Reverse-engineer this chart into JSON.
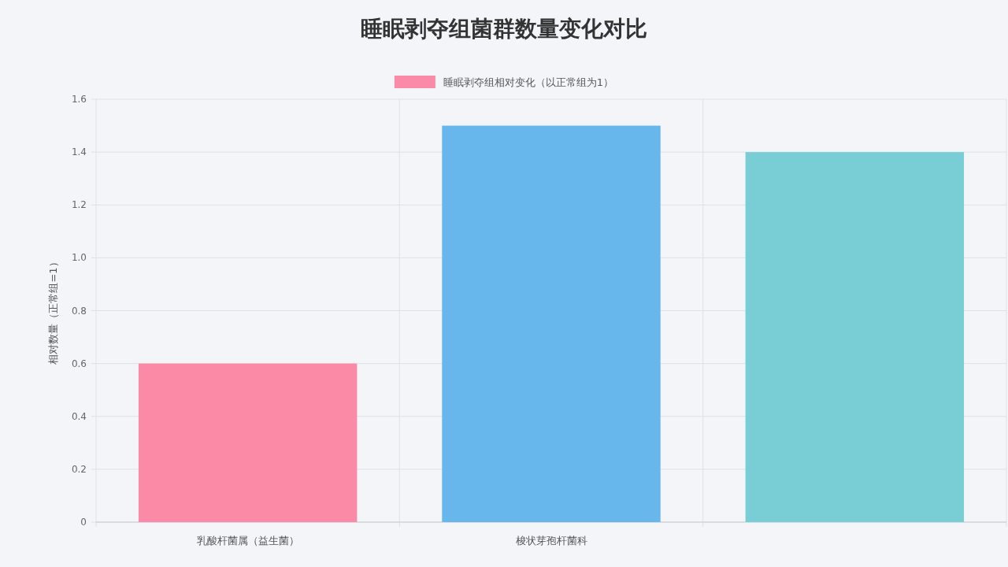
{
  "chart_data": {
    "type": "bar",
    "title": "睡眠剥夺组菌群数量变化对比",
    "ylabel": "相对数量（正常组=1）",
    "categories": [
      "乳酸杆菌属（益生菌）",
      "梭状芽孢杆菌科",
      null
    ],
    "series": [
      {
        "name": "睡眠剥夺组相对变化（以正常组为1）",
        "values": [
          0.6,
          1.5,
          1.4
        ]
      }
    ],
    "colors": [
      "#fa8aa5",
      "#68b7ec",
      "#79ced6"
    ],
    "ylim": [
      0,
      1.6
    ],
    "yticks": [
      0,
      {
        "value": 0.2,
        "label": "0.2"
      },
      {
        "value": 0.4,
        "label": "0.4"
      },
      {
        "value": 0.6,
        "label": "0.6"
      },
      {
        "value": 0.8,
        "label": "0.8"
      },
      {
        "value": 1.0,
        "label": "1.0"
      },
      {
        "value": 1.2,
        "label": "1.2"
      },
      {
        "value": 1.4,
        "label": "1.4"
      },
      {
        "value": 1.6,
        "label": "1.6"
      }
    ],
    "grid": true,
    "legend": "top"
  }
}
